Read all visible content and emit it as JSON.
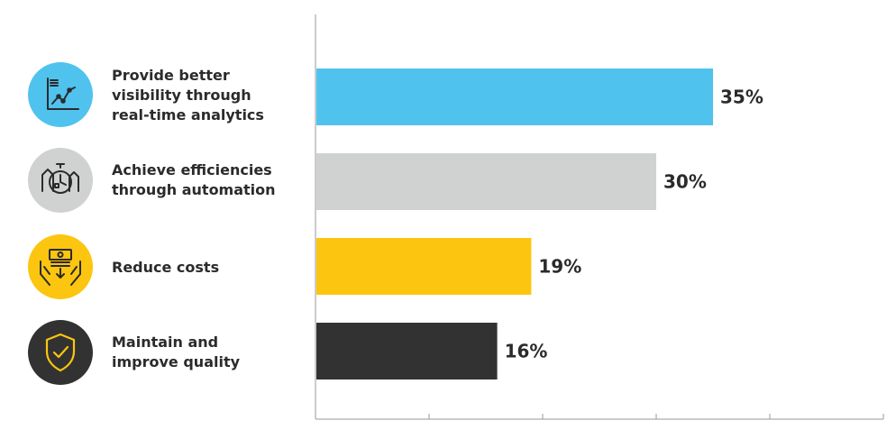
{
  "chart_data": {
    "type": "bar",
    "orientation": "horizontal",
    "categories": [
      "Provide better\nvisibility through\nreal-time analytics",
      "Achieve efficiencies\nthrough automation",
      "Reduce costs",
      "Maintain and\nimprove quality"
    ],
    "values": [
      35,
      30,
      19,
      16
    ],
    "value_labels": [
      "35%",
      "30%",
      "19%",
      "16%"
    ],
    "xlim": [
      0,
      50
    ],
    "grid": false,
    "colors": [
      "#4fc3ee",
      "#d0d2d2",
      "#fcc50f",
      "#333233"
    ],
    "icons": [
      "line-chart-icon",
      "clock-gear-icon",
      "money-hands-icon",
      "shield-check-icon"
    ]
  }
}
